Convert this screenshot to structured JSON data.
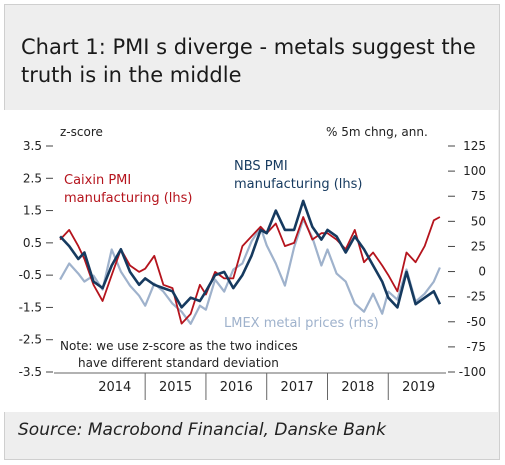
{
  "title": "Chart 1: PMI s diverge - metals suggest the truth is in the middle",
  "source": "Source: Macrobond Financial, Danske Bank",
  "colors": {
    "caixin": "#b5141d",
    "nbs": "#163a5f",
    "lmex": "#9fb2cc"
  },
  "chart_data": {
    "type": "line",
    "left_axis": {
      "label": "z-score",
      "ticks": [
        "3.5",
        "2.5",
        "1.5",
        "0.5",
        "-0.5",
        "-1.5",
        "-2.5",
        "-3.5"
      ],
      "ylim": [
        -3.5,
        3.5
      ]
    },
    "right_axis": {
      "label": "% 5m chng, ann.",
      "ticks": [
        "125",
        "100",
        "75",
        "50",
        "25",
        "0",
        "-25",
        "-50",
        "-75",
        "-100"
      ],
      "ylim": [
        -100,
        125
      ]
    },
    "xlim": [
      2013.5,
      2019.95
    ],
    "x_ticks": [
      "2014",
      "2015",
      "2016",
      "2017",
      "2018",
      "2019"
    ],
    "annotations": {
      "caixin_label_1": "Caixin PMI",
      "caixin_label_2": "manufacturing (lhs)",
      "nbs_label_1": "NBS PMI",
      "nbs_label_2": "manufacturing (lhs)",
      "lmex_label": "LMEX metal prices (rhs)",
      "note_1": "Note: we use z-score as the two indices",
      "note_2": "have different standard deviation"
    },
    "series": [
      {
        "name": "Caixin PMI manufacturing (lhs)",
        "axis": "left",
        "color": "#b5141d",
        "x": [
          2013.6,
          2013.75,
          2013.9,
          2014.0,
          2014.15,
          2014.3,
          2014.45,
          2014.6,
          2014.75,
          2014.9,
          2015.0,
          2015.15,
          2015.3,
          2015.45,
          2015.6,
          2015.75,
          2015.9,
          2016.0,
          2016.15,
          2016.3,
          2016.45,
          2016.6,
          2016.75,
          2016.9,
          2017.0,
          2017.15,
          2017.3,
          2017.45,
          2017.6,
          2017.75,
          2017.9,
          2018.0,
          2018.15,
          2018.3,
          2018.45,
          2018.6,
          2018.75,
          2018.9,
          2019.0,
          2019.15,
          2019.3,
          2019.45,
          2019.6,
          2019.75,
          2019.85
        ],
        "values": [
          0.6,
          0.9,
          0.4,
          0.0,
          -0.8,
          -1.3,
          -0.5,
          0.3,
          -0.2,
          -0.4,
          -0.3,
          0.1,
          -0.8,
          -0.9,
          -2.0,
          -1.7,
          -0.8,
          -1.1,
          -0.4,
          -0.6,
          -0.6,
          0.4,
          0.7,
          1.0,
          0.8,
          1.1,
          0.4,
          0.5,
          1.3,
          0.6,
          0.8,
          0.8,
          0.6,
          0.3,
          0.9,
          -0.1,
          0.2,
          -0.2,
          -0.5,
          -1.0,
          0.2,
          -0.1,
          0.4,
          1.2,
          1.3
        ]
      },
      {
        "name": "NBS PMI manufacturing (lhs)",
        "axis": "left",
        "color": "#163a5f",
        "x": [
          2013.6,
          2013.75,
          2013.9,
          2014.0,
          2014.15,
          2014.3,
          2014.45,
          2014.6,
          2014.75,
          2014.9,
          2015.0,
          2015.15,
          2015.3,
          2015.45,
          2015.6,
          2015.75,
          2015.9,
          2016.0,
          2016.15,
          2016.3,
          2016.45,
          2016.6,
          2016.75,
          2016.9,
          2017.0,
          2017.15,
          2017.3,
          2017.45,
          2017.6,
          2017.75,
          2017.9,
          2018.0,
          2018.15,
          2018.3,
          2018.45,
          2018.6,
          2018.75,
          2018.9,
          2019.0,
          2019.15,
          2019.3,
          2019.45,
          2019.6,
          2019.75,
          2019.85
        ],
        "values": [
          0.7,
          0.4,
          0.0,
          0.2,
          -0.7,
          -0.9,
          -0.2,
          0.3,
          -0.4,
          -0.8,
          -0.6,
          -0.8,
          -0.9,
          -1.0,
          -1.5,
          -1.2,
          -1.3,
          -1.0,
          -0.5,
          -0.4,
          -0.9,
          -0.5,
          0.1,
          0.9,
          0.8,
          1.5,
          0.9,
          0.9,
          1.8,
          1.0,
          0.6,
          0.9,
          0.7,
          0.2,
          0.7,
          0.3,
          -0.2,
          -0.7,
          -1.2,
          -1.5,
          -0.4,
          -1.4,
          -1.2,
          -1.0,
          -1.4
        ]
      },
      {
        "name": "LMEX metal prices (rhs)",
        "axis": "right",
        "color": "#9fb2cc",
        "x": [
          2013.6,
          2013.75,
          2013.9,
          2014.0,
          2014.15,
          2014.3,
          2014.45,
          2014.6,
          2014.75,
          2014.9,
          2015.0,
          2015.15,
          2015.3,
          2015.45,
          2015.6,
          2015.75,
          2015.9,
          2016.0,
          2016.15,
          2016.3,
          2016.45,
          2016.6,
          2016.75,
          2016.9,
          2017.0,
          2017.15,
          2017.3,
          2017.45,
          2017.6,
          2017.75,
          2017.9,
          2018.0,
          2018.15,
          2018.3,
          2018.45,
          2018.6,
          2018.75,
          2018.9,
          2019.0,
          2019.15,
          2019.3,
          2019.45,
          2019.6,
          2019.75,
          2019.85
        ],
        "values": [
          -8,
          8,
          -2,
          -10,
          -4,
          -18,
          22,
          0,
          -14,
          -24,
          -34,
          -12,
          -20,
          -32,
          -40,
          -52,
          -34,
          -38,
          -8,
          -20,
          2,
          8,
          30,
          44,
          26,
          8,
          -14,
          24,
          52,
          34,
          6,
          22,
          -2,
          -10,
          -32,
          -40,
          -22,
          -42,
          -20,
          -28,
          2,
          -30,
          -22,
          -10,
          4
        ]
      }
    ]
  }
}
